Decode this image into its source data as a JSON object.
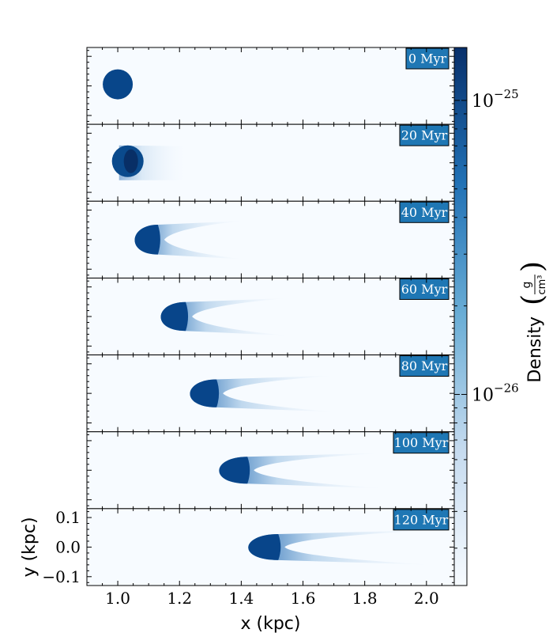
{
  "chart_data": {
    "type": "heatmap",
    "title": "",
    "xlabel": "x  (kpc)",
    "ylabel": "y  (kpc)",
    "xlim": [
      0.9,
      2.09
    ],
    "ylim": [
      -0.13,
      0.13
    ],
    "x_ticks": [
      1.0,
      1.2,
      1.4,
      1.6,
      1.8,
      2.0
    ],
    "x_tick_labels": [
      "1.0",
      "1.2",
      "1.4",
      "1.6",
      "1.8",
      "2.0"
    ],
    "y_ticks": [
      0.1,
      0.0,
      -0.1
    ],
    "y_tick_labels": [
      "0.1",
      "0.0",
      "−0.1"
    ],
    "colorbar": {
      "label": "Density",
      "unit_numerator": "g",
      "unit_denominator": "cm³",
      "scale": "log",
      "tick_values": [
        1e-25,
        1e-26
      ],
      "tick_base": "10",
      "tick_exponents": [
        "−25",
        "−26"
      ],
      "cmap": "Blues",
      "color_low": "#f7fbff",
      "color_high": "#08306b"
    },
    "panels": [
      {
        "time_label": "0 Myr",
        "head_x": 1.0,
        "shape": "sphere"
      },
      {
        "time_label": "20 Myr",
        "head_x": 1.04,
        "shape": "compressed"
      },
      {
        "time_label": "40 Myr",
        "head_x": 1.13,
        "shape": "bow"
      },
      {
        "time_label": "60 Myr",
        "head_x": 1.22,
        "shape": "bow"
      },
      {
        "time_label": "80 Myr",
        "head_x": 1.32,
        "shape": "bow"
      },
      {
        "time_label": "100 Myr",
        "head_x": 1.42,
        "shape": "bow"
      },
      {
        "time_label": "120 Myr",
        "head_x": 1.52,
        "shape": "bow"
      }
    ]
  }
}
